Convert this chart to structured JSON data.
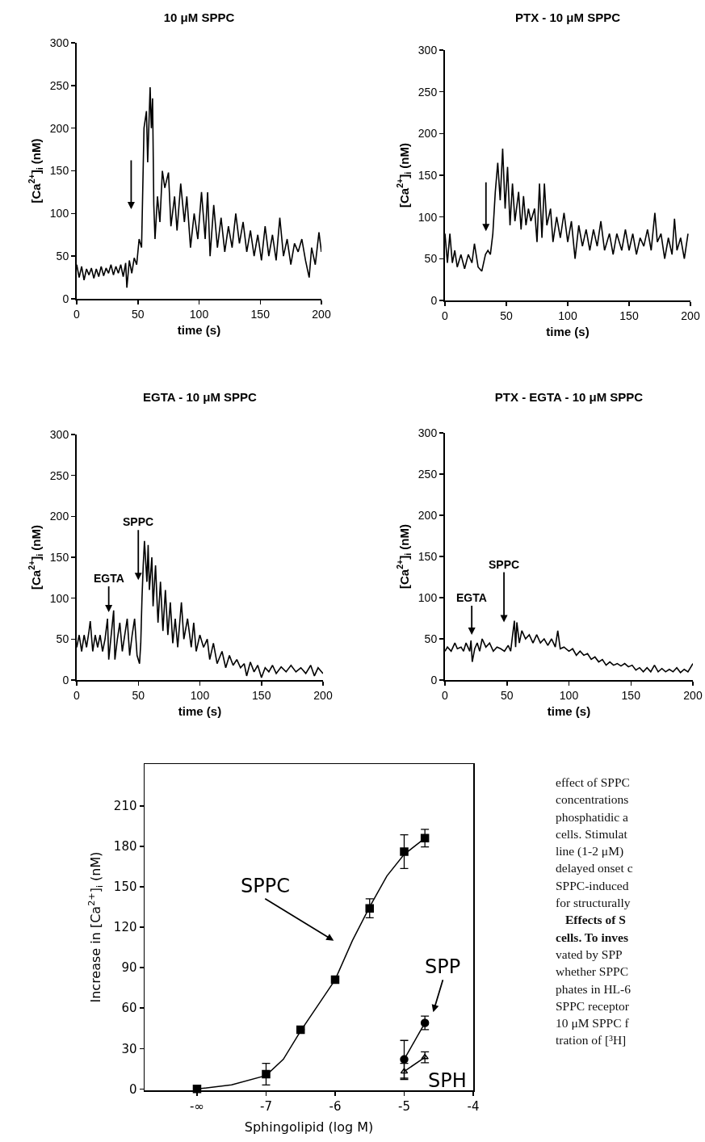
{
  "chart_data": [
    {
      "type": "line",
      "title": "10 μM SPPC",
      "xlabel": "time (s)",
      "ylabel": "[Ca$^{2+}$]$_{i}$ (nM)",
      "xlim": [
        0,
        200
      ],
      "xticks": [
        0,
        50,
        100,
        150,
        200
      ],
      "ylim": [
        0,
        300
      ],
      "yticks": [
        0,
        50,
        100,
        150,
        200,
        250,
        300
      ],
      "color": "#000000",
      "x": [
        0,
        2,
        4,
        6,
        8,
        10,
        12,
        14,
        16,
        18,
        20,
        22,
        24,
        26,
        28,
        30,
        32,
        34,
        36,
        38,
        40,
        41,
        43,
        45,
        47,
        49,
        51,
        53,
        55,
        57,
        58,
        60,
        61,
        62,
        63,
        64,
        66,
        68,
        70,
        72,
        75,
        77,
        80,
        82,
        85,
        88,
        90,
        93,
        96,
        99,
        102,
        105,
        107,
        109,
        112,
        115,
        118,
        121,
        124,
        127,
        130,
        133,
        136,
        139,
        142,
        145,
        148,
        151,
        154,
        157,
        160,
        163,
        166,
        169,
        172,
        175,
        178,
        181,
        184,
        187,
        190,
        192,
        195,
        198,
        200
      ],
      "values": [
        40,
        25,
        38,
        22,
        35,
        28,
        36,
        24,
        35,
        26,
        38,
        27,
        36,
        30,
        40,
        28,
        38,
        30,
        40,
        26,
        42,
        13,
        45,
        30,
        48,
        40,
        70,
        60,
        200,
        220,
        160,
        248,
        200,
        235,
        110,
        70,
        120,
        90,
        150,
        130,
        148,
        85,
        120,
        80,
        135,
        90,
        120,
        60,
        100,
        70,
        125,
        70,
        125,
        50,
        110,
        60,
        95,
        55,
        85,
        60,
        100,
        65,
        90,
        55,
        80,
        50,
        75,
        45,
        85,
        50,
        75,
        45,
        95,
        50,
        70,
        40,
        65,
        55,
        70,
        45,
        25,
        60,
        40,
        78,
        55
      ]
    },
    {
      "type": "line",
      "title": "PTX - 10 μM SPPC",
      "xlabel": "time (s)",
      "ylabel": "[Ca$^{2+}$]$_{i}$ (nM)",
      "xlim": [
        0,
        200
      ],
      "xticks": [
        0,
        50,
        100,
        150,
        200
      ],
      "ylim": [
        0,
        300
      ],
      "yticks": [
        0,
        50,
        100,
        150,
        200,
        250,
        300
      ],
      "color": "#000000",
      "x": [
        0,
        2,
        4,
        6,
        8,
        10,
        13,
        16,
        19,
        22,
        24,
        27,
        30,
        33,
        35,
        37,
        39,
        41,
        43,
        45,
        47,
        49,
        51,
        53,
        55,
        57,
        60,
        62,
        64,
        66,
        68,
        70,
        73,
        75,
        77,
        79,
        81,
        83,
        86,
        88,
        91,
        94,
        97,
        100,
        103,
        106,
        109,
        112,
        115,
        118,
        121,
        124,
        127,
        130,
        134,
        137,
        140,
        144,
        147,
        150,
        153,
        156,
        159,
        162,
        165,
        168,
        171,
        173,
        176,
        179,
        182,
        185,
        187,
        189,
        192,
        195,
        198
      ],
      "values": [
        80,
        45,
        80,
        45,
        60,
        40,
        55,
        38,
        55,
        45,
        68,
        40,
        35,
        55,
        60,
        55,
        80,
        130,
        165,
        120,
        182,
        110,
        160,
        90,
        140,
        95,
        130,
        85,
        125,
        90,
        110,
        95,
        110,
        70,
        140,
        75,
        140,
        90,
        110,
        70,
        100,
        75,
        105,
        70,
        95,
        50,
        90,
        65,
        85,
        60,
        85,
        65,
        95,
        60,
        80,
        55,
        80,
        60,
        85,
        60,
        80,
        55,
        75,
        65,
        85,
        60,
        105,
        70,
        80,
        50,
        75,
        55,
        98,
        60,
        75,
        50,
        80
      ]
    },
    {
      "type": "line",
      "title": "EGTA - 10 μM SPPC",
      "xlabel": "time (s)",
      "ylabel": "[Ca$^{2+}$]$_{i}$ (nM)",
      "xlim": [
        0,
        200
      ],
      "xticks": [
        0,
        50,
        100,
        150,
        200
      ],
      "ylim": [
        0,
        300
      ],
      "yticks": [
        0,
        50,
        100,
        150,
        200,
        250,
        300
      ],
      "color": "#000000",
      "annotations": [
        "EGTA",
        "SPPC"
      ],
      "x": [
        0,
        2,
        4,
        6,
        8,
        10,
        11,
        13,
        15,
        17,
        19,
        21,
        23,
        25,
        26,
        28,
        30,
        31,
        33,
        35,
        37,
        39,
        41,
        43,
        45,
        47,
        49,
        51,
        52,
        53,
        54,
        55,
        57,
        58,
        59,
        61,
        62,
        64,
        66,
        68,
        70,
        72,
        74,
        76,
        78,
        80,
        82,
        85,
        87,
        90,
        93,
        95,
        97,
        100,
        103,
        106,
        108,
        111,
        114,
        118,
        121,
        124,
        127,
        130,
        133,
        136,
        138,
        141,
        144,
        147,
        150,
        153,
        156,
        159,
        162,
        166,
        170,
        174,
        178,
        182,
        186,
        190,
        193,
        196,
        200
      ],
      "values": [
        40,
        55,
        35,
        55,
        40,
        60,
        72,
        35,
        55,
        40,
        55,
        35,
        50,
        75,
        25,
        55,
        85,
        25,
        50,
        70,
        35,
        55,
        75,
        30,
        55,
        75,
        30,
        20,
        45,
        100,
        140,
        170,
        120,
        165,
        110,
        150,
        90,
        140,
        70,
        120,
        60,
        110,
        55,
        95,
        45,
        75,
        40,
        95,
        50,
        75,
        40,
        70,
        35,
        55,
        40,
        50,
        25,
        45,
        20,
        35,
        15,
        30,
        18,
        25,
        15,
        20,
        5,
        22,
        10,
        18,
        3,
        15,
        10,
        18,
        8,
        16,
        10,
        18,
        10,
        15,
        8,
        18,
        5,
        15,
        8
      ]
    },
    {
      "type": "line",
      "title": "PTX - EGTA - 10 μM SPPC",
      "xlabel": "time (s)",
      "ylabel": "[Ca$^{2+}$]$_{i}$ (nM)",
      "xlim": [
        0,
        200
      ],
      "xticks": [
        0,
        50,
        100,
        150,
        200
      ],
      "ylim": [
        0,
        300
      ],
      "yticks": [
        0,
        50,
        100,
        150,
        200,
        250,
        300
      ],
      "color": "#000000",
      "annotations": [
        "EGTA",
        "SPPC"
      ],
      "x": [
        0,
        2,
        5,
        8,
        10,
        13,
        15,
        17,
        20,
        21,
        22,
        24,
        26,
        28,
        30,
        33,
        36,
        39,
        42,
        45,
        48,
        51,
        53,
        55,
        56,
        57,
        58,
        60,
        62,
        65,
        68,
        71,
        74,
        77,
        80,
        83,
        86,
        89,
        91,
        93,
        96,
        100,
        103,
        106,
        109,
        112,
        115,
        118,
        121,
        124,
        127,
        130,
        133,
        136,
        139,
        142,
        145,
        148,
        151,
        154,
        157,
        160,
        163,
        166,
        169,
        172,
        175,
        178,
        181,
        184,
        187,
        190,
        193,
        196,
        200
      ],
      "values": [
        35,
        40,
        35,
        45,
        38,
        40,
        35,
        45,
        35,
        48,
        22,
        38,
        45,
        35,
        50,
        40,
        45,
        35,
        40,
        38,
        35,
        42,
        35,
        60,
        72,
        40,
        70,
        45,
        60,
        50,
        55,
        45,
        55,
        45,
        50,
        42,
        50,
        40,
        60,
        38,
        40,
        35,
        38,
        30,
        35,
        30,
        32,
        25,
        28,
        22,
        25,
        18,
        22,
        18,
        20,
        17,
        20,
        16,
        18,
        12,
        15,
        10,
        15,
        10,
        18,
        10,
        14,
        10,
        13,
        10,
        15,
        9,
        13,
        10,
        20
      ]
    },
    {
      "type": "scatter",
      "xlabel": "Sphingolipid (log M)",
      "ylabel": "Increase in [Ca$^{2+}$]$_{i}$ (nM)",
      "xlim": [
        -8.76,
        -4
      ],
      "xticks": [
        {
          "value": -8,
          "label": "-∞"
        },
        -7,
        -6,
        -5,
        -4
      ],
      "ylim": [
        -1,
        241
      ],
      "yticks": [
        0,
        30,
        60,
        90,
        120,
        150,
        180,
        210
      ],
      "annotations": [
        "SPPC",
        "SPP",
        "SPH"
      ],
      "series": [
        {
          "type": "line",
          "color": "#000000",
          "marker": "none",
          "x": [
            -8,
            -7.5,
            -7,
            -6.75,
            -6.5,
            -6.25,
            -6,
            -5.75,
            -5.5,
            -5.25,
            -5,
            -4.7
          ],
          "values": [
            0,
            3,
            10,
            22,
            43,
            62,
            81,
            110,
            135,
            158,
            174,
            186
          ]
        },
        {
          "type": "scatter",
          "color": "#000000",
          "marker": "square",
          "x": [
            -8,
            -7,
            -6.5,
            -6,
            -5.5,
            -5,
            -4.7
          ],
          "values": [
            0,
            11,
            44,
            81,
            134,
            176,
            186
          ],
          "errors": [
            null,
            8,
            null,
            null,
            7,
            12.5,
            6.5
          ]
        },
        {
          "type": "line",
          "color": "#000000",
          "marker": "circle",
          "x": [
            -5,
            -4.7
          ],
          "values": [
            22,
            49
          ],
          "errors": [
            14,
            5
          ]
        },
        {
          "type": "line",
          "color": "#000000",
          "marker": "triangle",
          "x": [
            -5,
            -4.7
          ],
          "values": [
            13,
            23.5
          ],
          "errors": [
            6,
            4
          ]
        }
      ]
    },
    {
      "type": "other",
      "annotations": [
        "effect of SPPC",
        "concentrations",
        "phosphatidic a",
        "cells. Stimulat",
        "line (1-2 μM)",
        "delayed onset c",
        "SPPC-induced",
        "for structurally",
        "Effects of S",
        "cells. To inves",
        "vated by SPP",
        "whether SPPC",
        "phates in HL-6",
        "SPPC receptor",
        "10 μM SPPC f",
        "tration of [³H]"
      ]
    }
  ]
}
